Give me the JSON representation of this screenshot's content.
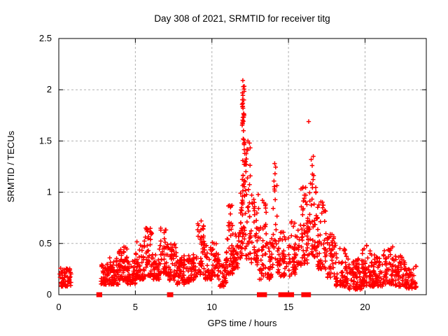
{
  "chart_data": {
    "type": "scatter",
    "title": "Day 308 of 2021, SRMTID for receiver titg",
    "xlabel": "GPS time / hours",
    "ylabel": "SRMTID / TECUs",
    "xlim": [
      0,
      24
    ],
    "ylim": [
      0,
      2.5
    ],
    "xticks": [
      0,
      5,
      10,
      15,
      20
    ],
    "yticks": [
      0,
      0.5,
      1,
      1.5,
      2,
      2.5
    ],
    "grid": true,
    "legend": "none",
    "marker": "plus",
    "marker_color": "#ff0000",
    "grid_color": "#b0b0b0",
    "axis_color": "#000000",
    "background_color": "#ffffff",
    "seed": 308,
    "bands_note": "dense scatter approximated by envelope bands [x_start,x_end,y_min,y_max,count,bias]; values in hours and TECUs as read from the plot",
    "bands": [
      [
        0.05,
        0.82,
        0.08,
        0.26,
        55
      ],
      [
        2.75,
        3.3,
        0.1,
        0.3,
        50
      ],
      [
        3.3,
        3.9,
        0.1,
        0.38,
        55
      ],
      [
        3.9,
        4.45,
        0.14,
        0.47,
        55
      ],
      [
        4.45,
        5.0,
        0.1,
        0.34,
        50
      ],
      [
        5.0,
        5.55,
        0.15,
        0.52,
        50
      ],
      [
        5.55,
        6.1,
        0.18,
        0.66,
        50
      ],
      [
        6.1,
        6.6,
        0.15,
        0.46,
        45
      ],
      [
        6.6,
        7.1,
        0.2,
        0.66,
        45
      ],
      [
        7.1,
        7.7,
        0.14,
        0.5,
        50
      ],
      [
        7.7,
        8.4,
        0.1,
        0.38,
        55
      ],
      [
        8.4,
        9.0,
        0.12,
        0.42,
        50
      ],
      [
        9.05,
        9.5,
        0.18,
        0.72,
        40
      ],
      [
        9.5,
        10.0,
        0.15,
        0.5,
        40
      ],
      [
        10.0,
        10.45,
        0.18,
        0.52,
        38
      ],
      [
        10.45,
        10.95,
        0.08,
        0.35,
        42
      ],
      [
        10.95,
        11.35,
        0.2,
        0.88,
        40
      ],
      [
        11.35,
        11.75,
        0.25,
        0.6,
        38
      ],
      [
        11.75,
        11.97,
        0.35,
        1.0,
        25
      ],
      [
        11.97,
        12.18,
        0.4,
        2.05,
        55,
        1.1
      ],
      [
        12.18,
        12.55,
        0.35,
        1.5,
        40,
        1.3
      ],
      [
        12.55,
        13.05,
        0.28,
        0.98,
        40
      ],
      [
        13.05,
        13.6,
        0.15,
        0.9,
        40
      ],
      [
        13.6,
        14.0,
        0.15,
        0.55,
        32
      ],
      [
        14.0,
        14.25,
        0.35,
        1.25,
        18,
        1.2
      ],
      [
        14.25,
        15.1,
        0.18,
        0.62,
        55
      ],
      [
        15.1,
        15.7,
        0.2,
        0.72,
        45
      ],
      [
        15.7,
        16.1,
        0.28,
        1.05,
        38,
        1.4
      ],
      [
        16.1,
        16.45,
        0.3,
        1.1,
        32,
        1.4
      ],
      [
        16.45,
        16.9,
        0.35,
        1.32,
        42,
        1.3
      ],
      [
        16.9,
        17.5,
        0.25,
        0.95,
        48
      ],
      [
        17.5,
        18.1,
        0.15,
        0.6,
        48
      ],
      [
        18.1,
        18.9,
        0.08,
        0.45,
        60
      ],
      [
        18.9,
        19.8,
        0.05,
        0.35,
        75
      ],
      [
        19.8,
        20.4,
        0.08,
        0.5,
        55
      ],
      [
        20.4,
        21.2,
        0.08,
        0.4,
        65
      ],
      [
        21.2,
        21.9,
        0.1,
        0.48,
        55
      ],
      [
        21.9,
        22.6,
        0.08,
        0.38,
        55
      ],
      [
        22.6,
        23.35,
        0.06,
        0.28,
        50
      ]
    ],
    "outliers": [
      [
        12.02,
        2.09
      ],
      [
        12.05,
        2.03
      ],
      [
        11.99,
        1.97
      ],
      [
        12.08,
        1.9
      ],
      [
        12.03,
        1.82
      ],
      [
        12.1,
        1.75
      ],
      [
        12.0,
        1.68
      ],
      [
        12.06,
        1.6
      ],
      [
        12.04,
        1.52
      ],
      [
        12.35,
        1.5
      ],
      [
        12.3,
        1.42
      ],
      [
        16.32,
        1.69
      ],
      [
        16.62,
        1.35
      ],
      [
        16.55,
        1.26
      ],
      [
        14.1,
        1.28
      ],
      [
        14.12,
        1.18
      ],
      [
        15.95,
        1.05
      ],
      [
        13.3,
        0.92
      ],
      [
        9.3,
        0.72
      ],
      [
        11.15,
        0.87
      ]
    ],
    "zero_marker_segments": [
      [
        2.57,
        2.72
      ],
      [
        7.18,
        7.36
      ],
      [
        13.05,
        13.3
      ],
      [
        13.33,
        13.48
      ],
      [
        14.45,
        14.75
      ],
      [
        14.8,
        15.25
      ],
      [
        15.95,
        16.35
      ]
    ]
  }
}
